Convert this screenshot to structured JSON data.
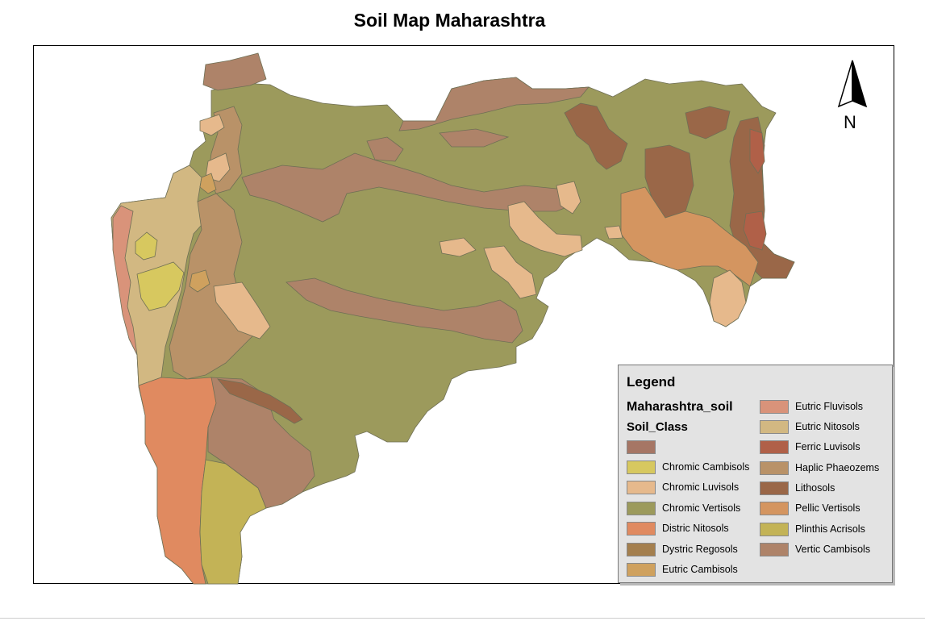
{
  "title": "Soil Map Maharashtra",
  "north_label": "N",
  "legend": {
    "title": "Legend",
    "layer": "Maharashtra_soil",
    "field": "Soil_Class",
    "items": [
      {
        "label": "",
        "color": "#A67665"
      },
      {
        "label": "Chromic Cambisols",
        "color": "#D7C85F"
      },
      {
        "label": "Chromic Luvisols",
        "color": "#E6B98C"
      },
      {
        "label": "Chromic Vertisols",
        "color": "#9C9A5C"
      },
      {
        "label": "Distric Nitosols",
        "color": "#E08A60"
      },
      {
        "label": "Dystric Regosols",
        "color": "#A47F4E"
      },
      {
        "label": "Eutric Cambisols",
        "color": "#CFA15E"
      },
      {
        "label": "Eutric Fluvisols",
        "color": "#D9937A"
      },
      {
        "label": "Eutric Nitosols",
        "color": "#D2B882"
      },
      {
        "label": "Ferric Luvisols",
        "color": "#B06048"
      },
      {
        "label": "Haplic Phaeozems",
        "color": "#B99268"
      },
      {
        "label": "Lithosols",
        "color": "#9A6748"
      },
      {
        "label": "Pellic Vertisols",
        "color": "#D49560"
      },
      {
        "label": "Plinthis Acrisols",
        "color": "#C3B356"
      },
      {
        "label": "Vertic Cambisols",
        "color": "#AE8369"
      }
    ]
  }
}
